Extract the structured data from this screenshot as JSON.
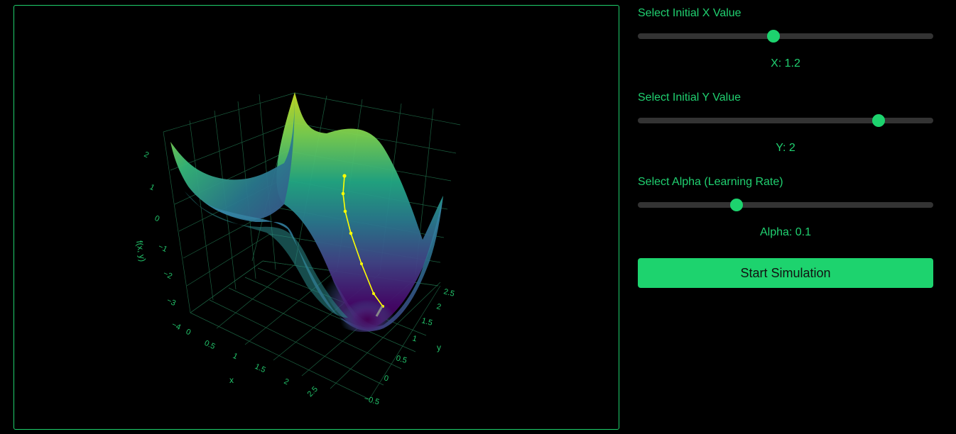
{
  "controls": {
    "x": {
      "label": "Select Initial X Value",
      "readout": "X: 1.2",
      "value": 1.2,
      "position_fraction": 0.46
    },
    "y": {
      "label": "Select Initial Y Value",
      "readout": "Y: 2",
      "value": 2,
      "position_fraction": 0.815
    },
    "alpha": {
      "label": "Select Alpha (Learning Rate)",
      "readout": "Alpha: 0.1",
      "value": 0.1,
      "position_fraction": 0.335
    },
    "start_button_label": "Start Simulation"
  },
  "colors": {
    "accent": "#1dd36e",
    "text": "#20d070",
    "slider_track": "#333333",
    "background": "#000000",
    "path": "#ffff00"
  },
  "chart_data": {
    "type": "surface3d",
    "colorscale": "viridis",
    "axes": {
      "x": {
        "title": "x",
        "ticks": [
          "0",
          "0.5",
          "1",
          "1.5",
          "2",
          "2.5"
        ]
      },
      "y": {
        "title": "y",
        "ticks": [
          "−0.5",
          "0",
          "0.5",
          "1",
          "1.5",
          "2",
          "2.5"
        ]
      },
      "z": {
        "title": "f(x, y)",
        "ticks": [
          "−4",
          "−3",
          "−2",
          "−1",
          "0",
          "1",
          "2"
        ]
      }
    },
    "grid": true,
    "descent_path": {
      "color": "#ffff00",
      "start": {
        "x": 1.2,
        "y": 2
      },
      "points_shown": 7
    }
  }
}
